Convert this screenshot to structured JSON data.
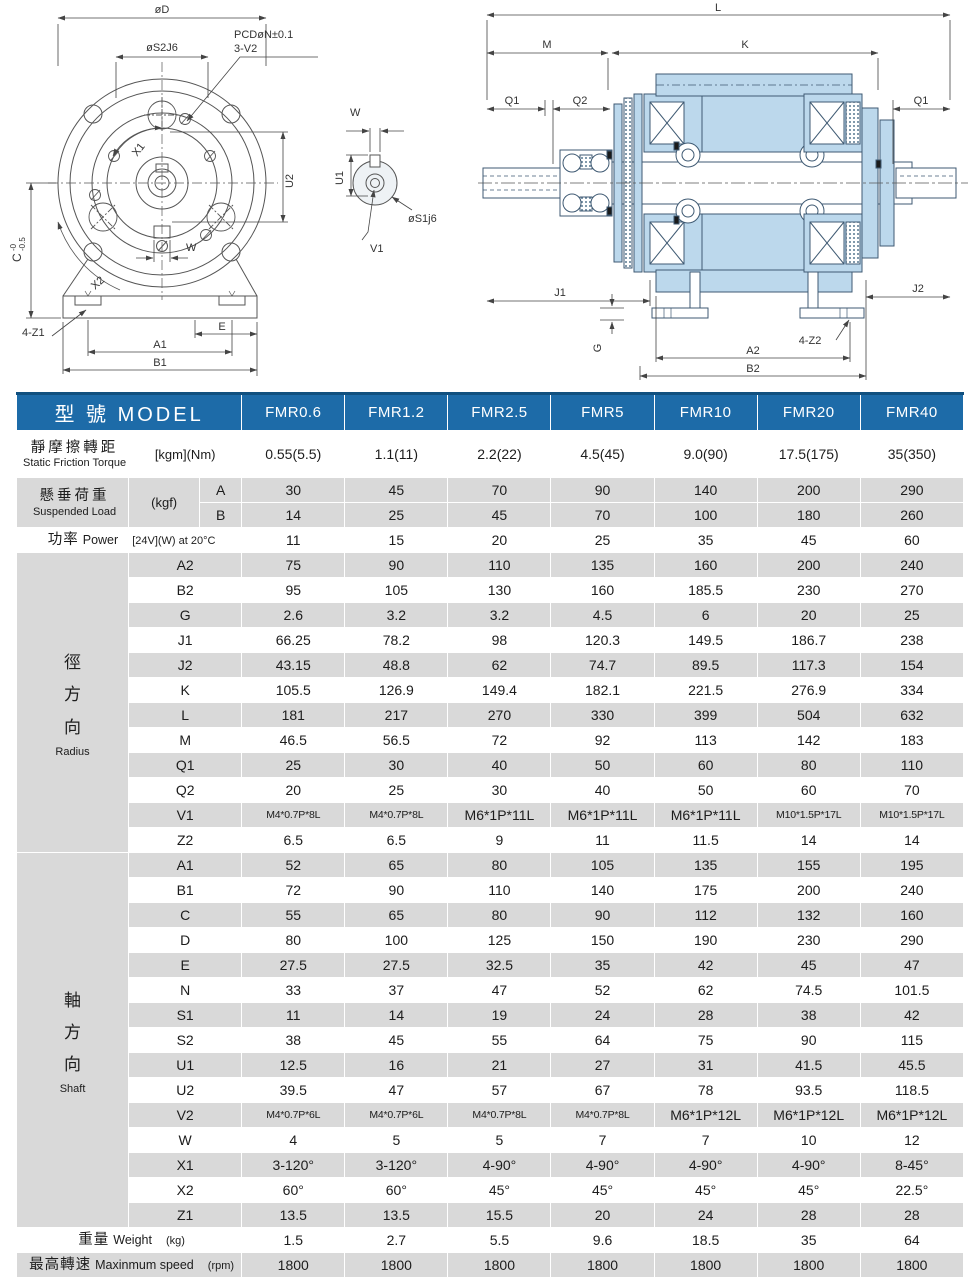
{
  "table": {
    "header": {
      "model_label": "型 號 MODEL",
      "models": [
        "FMR0.6",
        "FMR1.2",
        "FMR2.5",
        "FMR5",
        "FMR10",
        "FMR20",
        "FMR40"
      ]
    },
    "torque": {
      "zh": "靜摩擦轉距",
      "en": "Static Friction Torque",
      "unit": "[kgm](Nm)",
      "values": [
        "0.55(5.5)",
        "1.1(11)",
        "2.2(22)",
        "4.5(45)",
        "9.0(90)",
        "17.5(175)",
        "35(350)"
      ]
    },
    "suspended": {
      "zh": "懸垂荷重",
      "en": "Suspended Load",
      "unit": "(kgf)",
      "rows": [
        {
          "key": "A",
          "values": [
            30,
            45,
            70,
            90,
            140,
            200,
            290
          ]
        },
        {
          "key": "B",
          "values": [
            14,
            25,
            45,
            70,
            100,
            180,
            260
          ]
        }
      ]
    },
    "power": {
      "zh": "功率",
      "en": "Power",
      "unit": "[24V](W) at 20°C",
      "values": [
        11,
        15,
        20,
        25,
        35,
        45,
        60
      ]
    },
    "radius": {
      "zh": "徑方向",
      "en": "Radius",
      "rows": [
        {
          "key": "A2",
          "values": [
            75,
            90,
            110,
            135,
            160,
            200,
            240
          ]
        },
        {
          "key": "B2",
          "values": [
            95,
            105,
            130,
            160,
            185.5,
            230,
            270
          ]
        },
        {
          "key": "G",
          "values": [
            2.6,
            3.2,
            3.2,
            4.5,
            6,
            20,
            25
          ]
        },
        {
          "key": "J1",
          "values": [
            66.25,
            78.2,
            98,
            120.3,
            149.5,
            186.7,
            238
          ]
        },
        {
          "key": "J2",
          "values": [
            43.15,
            48.8,
            62,
            74.7,
            89.5,
            117.3,
            154
          ]
        },
        {
          "key": "K",
          "values": [
            105.5,
            126.9,
            149.4,
            182.1,
            221.5,
            276.9,
            334
          ]
        },
        {
          "key": "L",
          "values": [
            181,
            217,
            270,
            330,
            399,
            504,
            632
          ]
        },
        {
          "key": "M",
          "values": [
            46.5,
            56.5,
            72,
            92,
            113,
            142,
            183
          ]
        },
        {
          "key": "Q1",
          "values": [
            25,
            30,
            40,
            50,
            60,
            80,
            110
          ]
        },
        {
          "key": "Q2",
          "values": [
            20,
            25,
            30,
            40,
            50,
            60,
            70
          ]
        },
        {
          "key": "V1",
          "values": [
            "M4*0.7P*8L",
            "M4*0.7P*8L",
            "M6*1P*11L",
            "M6*1P*11L",
            "M6*1P*11L",
            "M10*1.5P*17L",
            "M10*1.5P*17L"
          ]
        },
        {
          "key": "Z2",
          "values": [
            6.5,
            6.5,
            9,
            11,
            11.5,
            14,
            14
          ]
        }
      ]
    },
    "shaft": {
      "zh": "軸方向",
      "en": "Shaft",
      "rows": [
        {
          "key": "A1",
          "values": [
            52,
            65,
            80,
            105,
            135,
            155,
            195
          ]
        },
        {
          "key": "B1",
          "values": [
            72,
            90,
            110,
            140,
            175,
            200,
            240
          ]
        },
        {
          "key": "C",
          "values": [
            55,
            65,
            80,
            90,
            112,
            132,
            160
          ]
        },
        {
          "key": "D",
          "values": [
            80,
            100,
            125,
            150,
            190,
            230,
            290
          ]
        },
        {
          "key": "E",
          "values": [
            27.5,
            27.5,
            32.5,
            35,
            42,
            45,
            47
          ]
        },
        {
          "key": "N",
          "values": [
            33,
            37,
            47,
            52,
            62,
            74.5,
            101.5
          ]
        },
        {
          "key": "S1",
          "values": [
            11,
            14,
            19,
            24,
            28,
            38,
            42
          ]
        },
        {
          "key": "S2",
          "values": [
            38,
            45,
            55,
            64,
            75,
            90,
            115
          ]
        },
        {
          "key": "U1",
          "values": [
            12.5,
            16,
            21,
            27,
            31,
            41.5,
            45.5
          ]
        },
        {
          "key": "U2",
          "values": [
            39.5,
            47,
            57,
            67,
            78,
            93.5,
            118.5
          ]
        },
        {
          "key": "V2",
          "values": [
            "M4*0.7P*6L",
            "M4*0.7P*6L",
            "M4*0.7P*8L",
            "M4*0.7P*8L",
            "M6*1P*12L",
            "M6*1P*12L",
            "M6*1P*12L"
          ]
        },
        {
          "key": "W",
          "values": [
            4,
            5,
            5,
            7,
            7,
            10,
            12
          ]
        },
        {
          "key": "X1",
          "values": [
            "3-120°",
            "3-120°",
            "4-90°",
            "4-90°",
            "4-90°",
            "4-90°",
            "8-45°"
          ]
        },
        {
          "key": "X2",
          "values": [
            "60°",
            "60°",
            "45°",
            "45°",
            "45°",
            "45°",
            "22.5°"
          ]
        },
        {
          "key": "Z1",
          "values": [
            13.5,
            13.5,
            15.5,
            20,
            24,
            28,
            28
          ]
        }
      ]
    },
    "weight": {
      "zh": "重量",
      "en": "Weight",
      "unit": "(kg)",
      "values": [
        1.5,
        2.7,
        5.5,
        9.6,
        18.5,
        35,
        64
      ]
    },
    "max_speed": {
      "zh": "最高轉速",
      "en": "Maxinmum speed",
      "unit": "(rpm)",
      "values": [
        1800,
        1800,
        1800,
        1800,
        1800,
        1800,
        1800
      ]
    }
  },
  "drawings": {
    "front_view": {
      "d": "øD",
      "s2": "øS2J6",
      "pcd": "PCDøN±0.1",
      "v2": "3-V2",
      "x1": "X1",
      "u2": "U2",
      "w": "W",
      "c": "C",
      "c_tol_top": "-0",
      "c_tol_bot": "-0.5",
      "x2": "X2",
      "z1": "4-Z1",
      "e": "E",
      "a1": "A1",
      "b1": "B1"
    },
    "shaft_view": {
      "w": "W",
      "u1": "U1",
      "s1": "øS1j6",
      "v1": "V1"
    },
    "section_view": {
      "l": "L",
      "m": "M",
      "k": "K",
      "q1_left": "Q1",
      "q2": "Q2",
      "q1_right": "Q1",
      "j1": "J1",
      "j2": "J2",
      "g": "G",
      "z2": "4-Z2",
      "a2": "A2",
      "b2": "B2"
    }
  },
  "colors": {
    "header_blue": "#1d6ba8",
    "sidebar_blue": "#26649b",
    "row_gray": "#d9d9d9",
    "section_fill_blue": "#bcd8ec"
  }
}
